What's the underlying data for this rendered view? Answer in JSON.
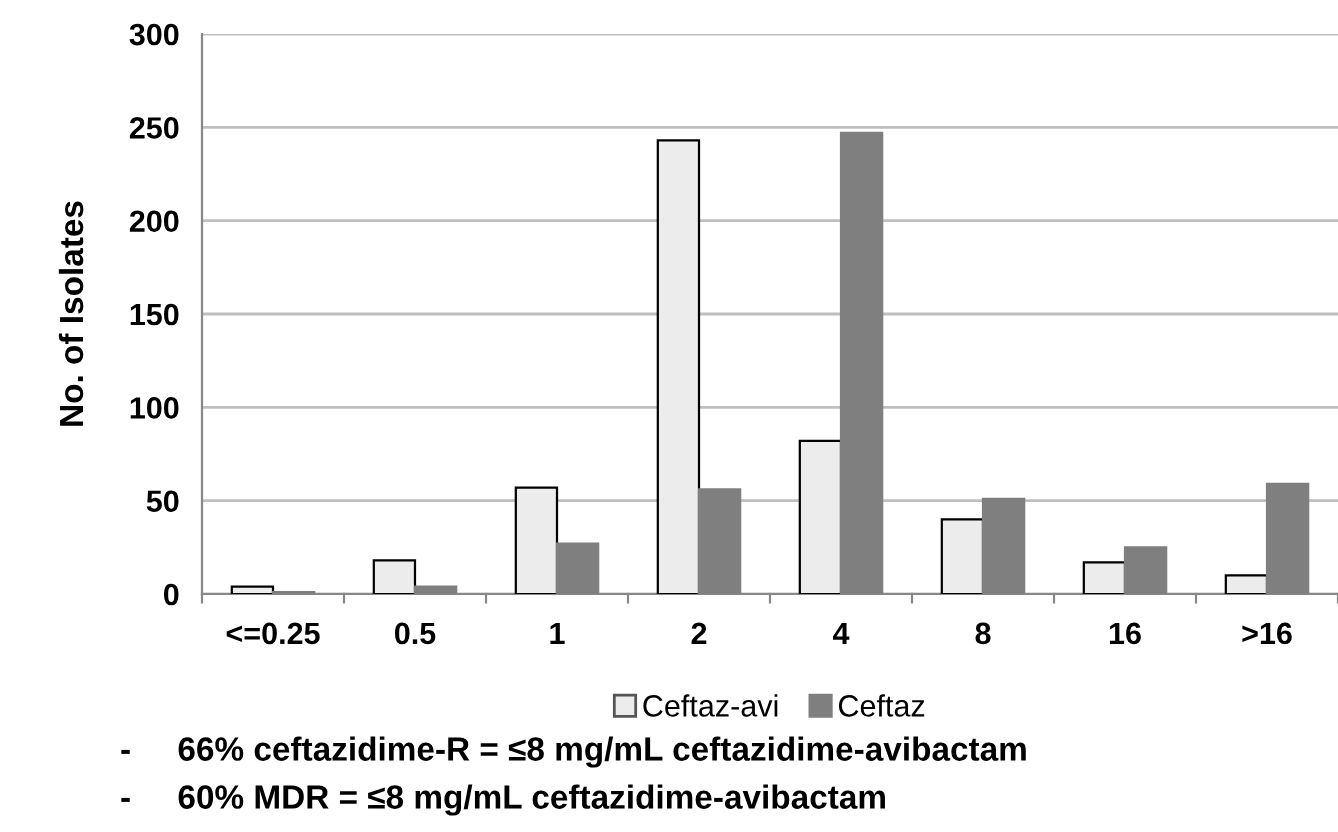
{
  "chart_data": {
    "type": "bar",
    "ylabel": "No. of Isolates",
    "categories": [
      "<=0.25",
      "0.5",
      "1",
      "2",
      "4",
      "8",
      "16",
      ">16"
    ],
    "series": [
      {
        "name": "Ceftaz-avi",
        "color": "#ececec",
        "values": [
          4,
          18,
          57,
          243,
          82,
          40,
          17,
          10
        ]
      },
      {
        "name": "Ceftaz",
        "color": "#7f7f7f",
        "values": [
          1,
          4,
          27,
          56,
          247,
          51,
          25,
          59
        ]
      }
    ],
    "ylim": [
      0,
      300
    ],
    "yticks": [
      0,
      50,
      100,
      150,
      200,
      250,
      300
    ],
    "grid": "y",
    "legend": "bottom",
    "annotations": [
      "-     66% ceftazidime-R = ≤8 mg/mL ceftazidime-avibactam",
      "-     60% MDR = ≤8 mg/mL ceftazidime-avibactam"
    ]
  }
}
